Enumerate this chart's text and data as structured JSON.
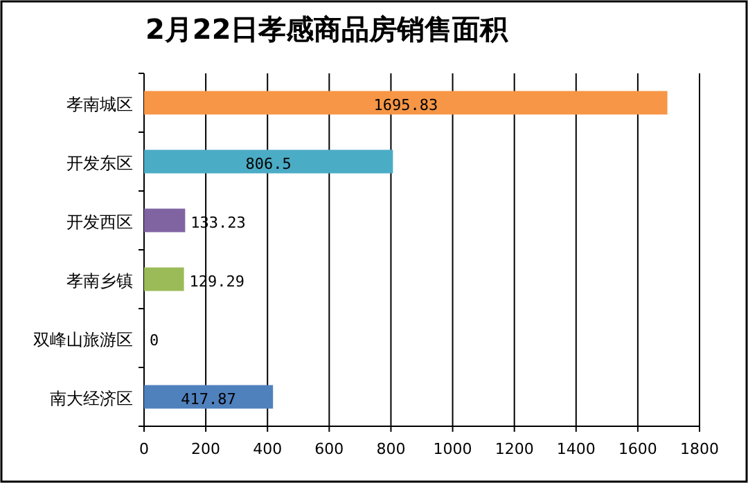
{
  "chart_data": {
    "type": "bar",
    "orientation": "horizontal",
    "title": "2月22日孝感商品房销售面积",
    "categories": [
      "孝南城区",
      "开发东区",
      "开发西区",
      "孝南乡镇",
      "双峰山旅游区",
      "南大经济区"
    ],
    "values": [
      1695.83,
      806.5,
      133.23,
      129.29,
      0,
      417.87
    ],
    "colors": [
      "#f79646",
      "#4bacc6",
      "#8064a2",
      "#9bbb59",
      "#c0504d",
      "#4f81bd"
    ],
    "xlim": [
      0,
      1800
    ],
    "xticks": [
      0,
      200,
      400,
      600,
      800,
      1000,
      1200,
      1400,
      1600,
      1800
    ],
    "grid": "x",
    "data_labels": true
  }
}
